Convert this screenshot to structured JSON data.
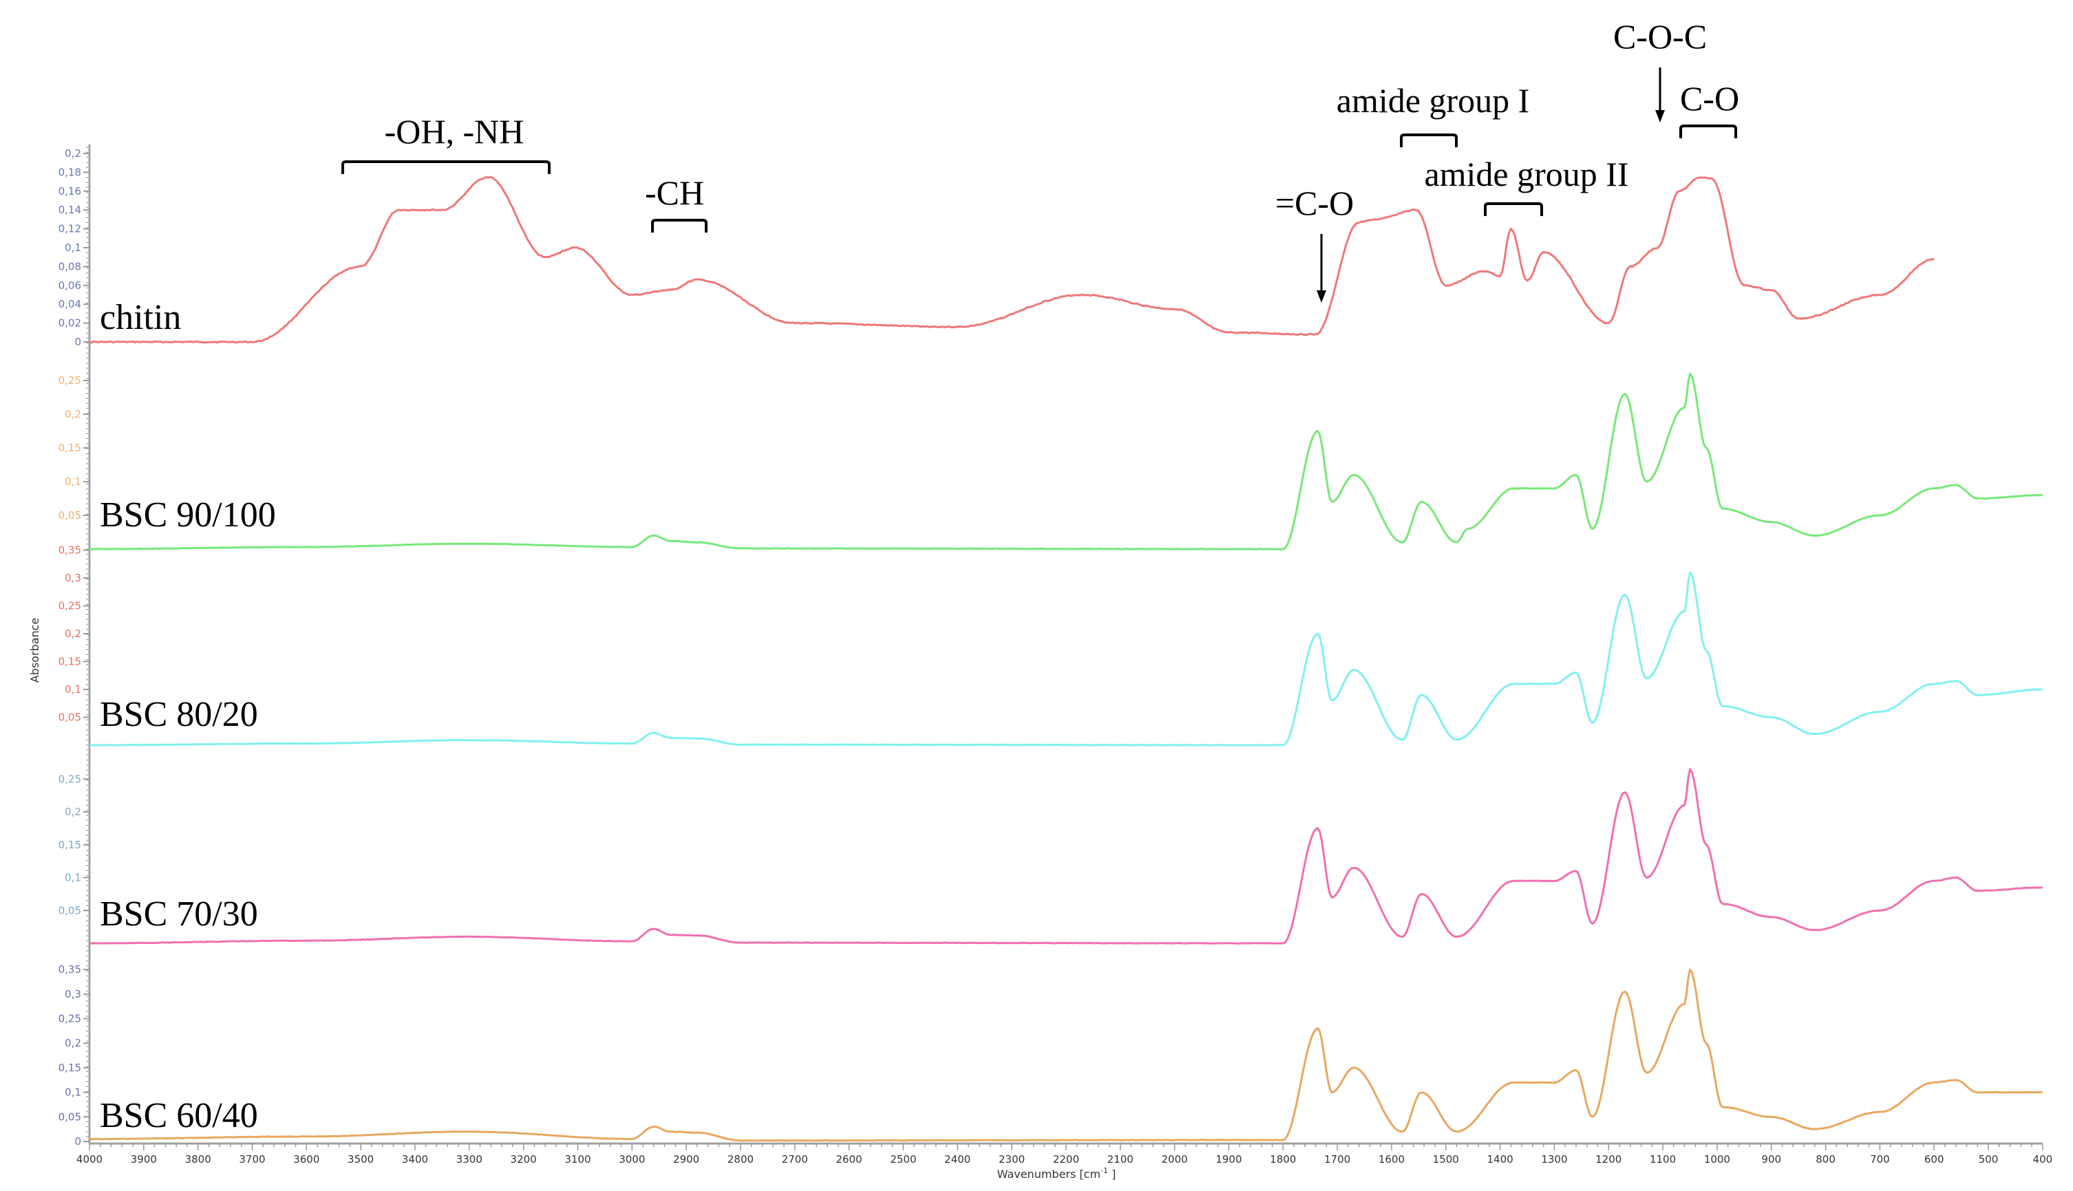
{
  "chart_data": {
    "type": "line",
    "title": "",
    "xlabel": "Wavenumbers [cm⁻¹ ]",
    "ylabel": "Absorbance",
    "x_range": [
      4000,
      400
    ],
    "x_reversed": true,
    "x_ticks": [
      4000,
      3900,
      3800,
      3700,
      3600,
      3500,
      3400,
      3300,
      3200,
      3100,
      3000,
      2900,
      2800,
      2700,
      2600,
      2500,
      2400,
      2300,
      2200,
      2100,
      2000,
      1900,
      1800,
      1700,
      1600,
      1500,
      1400,
      1300,
      1200,
      1100,
      1000,
      900,
      800,
      700,
      600,
      500,
      400
    ],
    "grid": false,
    "legend": "inline labels",
    "series": [
      {
        "name": "chitin",
        "color": "#f07878",
        "y_axis_color": "#6878b0",
        "y_ticks": [
          "0",
          "0,02",
          "0,04",
          "0,06",
          "0,08",
          "0,1",
          "0,12",
          "0,14",
          "0,16",
          "0,18",
          "0,2"
        ],
        "ylim": [
          0,
          0.2
        ],
        "x_end": 600,
        "key_points": [
          [
            4000,
            0.0
          ],
          [
            3700,
            0.0
          ],
          [
            3500,
            0.08
          ],
          [
            3430,
            0.14
          ],
          [
            3350,
            0.14
          ],
          [
            3265,
            0.175
          ],
          [
            3160,
            0.09
          ],
          [
            3105,
            0.1
          ],
          [
            3000,
            0.05
          ],
          [
            2930,
            0.055
          ],
          [
            2880,
            0.066
          ],
          [
            2700,
            0.02
          ],
          [
            2400,
            0.016
          ],
          [
            2170,
            0.05
          ],
          [
            2000,
            0.035
          ],
          [
            1900,
            0.01
          ],
          [
            1740,
            0.008
          ],
          [
            1660,
            0.127
          ],
          [
            1630,
            0.13
          ],
          [
            1555,
            0.14
          ],
          [
            1500,
            0.06
          ],
          [
            1430,
            0.075
          ],
          [
            1400,
            0.07
          ],
          [
            1380,
            0.12
          ],
          [
            1350,
            0.065
          ],
          [
            1320,
            0.095
          ],
          [
            1200,
            0.02
          ],
          [
            1160,
            0.08
          ],
          [
            1110,
            0.1
          ],
          [
            1070,
            0.16
          ],
          [
            1030,
            0.175
          ],
          [
            1010,
            0.173
          ],
          [
            950,
            0.06
          ],
          [
            900,
            0.055
          ],
          [
            850,
            0.025
          ],
          [
            700,
            0.05
          ],
          [
            600,
            0.088
          ]
        ]
      },
      {
        "name": "BSC 90/100",
        "color": "#78e878",
        "y_axis_color": "#f0b070",
        "y_ticks": [
          "0,05",
          "0,1",
          "0,15",
          "0,2",
          "0,25"
        ],
        "ylim": [
          0,
          0.28
        ],
        "key_points": [
          [
            4000,
            0.0
          ],
          [
            3600,
            0.003
          ],
          [
            3300,
            0.008
          ],
          [
            3000,
            0.003
          ],
          [
            2960,
            0.02
          ],
          [
            2930,
            0.012
          ],
          [
            2880,
            0.01
          ],
          [
            2800,
            0.001
          ],
          [
            1800,
            0.0
          ],
          [
            1736,
            0.175
          ],
          [
            1710,
            0.07
          ],
          [
            1670,
            0.11
          ],
          [
            1580,
            0.01
          ],
          [
            1545,
            0.07
          ],
          [
            1480,
            0.01
          ],
          [
            1460,
            0.03
          ],
          [
            1375,
            0.09
          ],
          [
            1300,
            0.09
          ],
          [
            1260,
            0.11
          ],
          [
            1230,
            0.03
          ],
          [
            1170,
            0.23
          ],
          [
            1130,
            0.1
          ],
          [
            1060,
            0.21
          ],
          [
            1050,
            0.26
          ],
          [
            1020,
            0.15
          ],
          [
            990,
            0.06
          ],
          [
            900,
            0.04
          ],
          [
            820,
            0.02
          ],
          [
            700,
            0.05
          ],
          [
            600,
            0.09
          ],
          [
            560,
            0.095
          ],
          [
            520,
            0.075
          ],
          [
            400,
            0.08
          ]
        ]
      },
      {
        "name": "BSC 80/20",
        "color": "#80f0f0",
        "y_axis_color": "#e87060",
        "y_ticks": [
          "0,05",
          "0,1",
          "0,15",
          "0,2",
          "0,25",
          "0,3",
          "0,35"
        ],
        "ylim": [
          0,
          0.36
        ],
        "key_points": [
          [
            4000,
            0.0
          ],
          [
            3600,
            0.003
          ],
          [
            3300,
            0.009
          ],
          [
            3000,
            0.003
          ],
          [
            2960,
            0.022
          ],
          [
            2930,
            0.013
          ],
          [
            2880,
            0.012
          ],
          [
            2800,
            0.001
          ],
          [
            1800,
            0.0
          ],
          [
            1736,
            0.2
          ],
          [
            1710,
            0.08
          ],
          [
            1670,
            0.135
          ],
          [
            1580,
            0.01
          ],
          [
            1545,
            0.09
          ],
          [
            1480,
            0.01
          ],
          [
            1375,
            0.11
          ],
          [
            1300,
            0.11
          ],
          [
            1260,
            0.13
          ],
          [
            1230,
            0.04
          ],
          [
            1170,
            0.27
          ],
          [
            1130,
            0.12
          ],
          [
            1060,
            0.24
          ],
          [
            1050,
            0.31
          ],
          [
            1020,
            0.17
          ],
          [
            990,
            0.07
          ],
          [
            900,
            0.05
          ],
          [
            820,
            0.02
          ],
          [
            700,
            0.06
          ],
          [
            600,
            0.11
          ],
          [
            560,
            0.115
          ],
          [
            520,
            0.09
          ],
          [
            400,
            0.1
          ]
        ]
      },
      {
        "name": "BSC 70/30",
        "color": "#f070b0",
        "y_axis_color": "#80a8c0",
        "y_ticks": [
          "0,05",
          "0,1",
          "0,15",
          "0,2",
          "0,25"
        ],
        "ylim": [
          0,
          0.28
        ],
        "key_points": [
          [
            4000,
            0.0
          ],
          [
            3600,
            0.004
          ],
          [
            3300,
            0.01
          ],
          [
            3000,
            0.003
          ],
          [
            2960,
            0.022
          ],
          [
            2930,
            0.013
          ],
          [
            2880,
            0.012
          ],
          [
            2800,
            0.001
          ],
          [
            1800,
            0.0
          ],
          [
            1736,
            0.175
          ],
          [
            1710,
            0.07
          ],
          [
            1670,
            0.115
          ],
          [
            1580,
            0.01
          ],
          [
            1545,
            0.075
          ],
          [
            1480,
            0.01
          ],
          [
            1375,
            0.095
          ],
          [
            1300,
            0.095
          ],
          [
            1260,
            0.11
          ],
          [
            1230,
            0.03
          ],
          [
            1170,
            0.23
          ],
          [
            1130,
            0.1
          ],
          [
            1060,
            0.21
          ],
          [
            1050,
            0.265
          ],
          [
            1020,
            0.15
          ],
          [
            990,
            0.06
          ],
          [
            900,
            0.04
          ],
          [
            820,
            0.02
          ],
          [
            700,
            0.05
          ],
          [
            600,
            0.095
          ],
          [
            560,
            0.1
          ],
          [
            520,
            0.08
          ],
          [
            400,
            0.085
          ]
        ]
      },
      {
        "name": "BSC 60/40",
        "color": "#e8a860",
        "y_axis_color": "#6870a8",
        "y_ticks": [
          "0",
          "0,05",
          "0,1",
          "0,15",
          "0,2",
          "0,25",
          "0,3",
          "0,35"
        ],
        "ylim": [
          0,
          0.37
        ],
        "key_points": [
          [
            4000,
            0.005
          ],
          [
            3600,
            0.01
          ],
          [
            3300,
            0.02
          ],
          [
            3000,
            0.005
          ],
          [
            2960,
            0.03
          ],
          [
            2930,
            0.02
          ],
          [
            2880,
            0.018
          ],
          [
            2800,
            0.002
          ],
          [
            1800,
            0.003
          ],
          [
            1736,
            0.23
          ],
          [
            1710,
            0.1
          ],
          [
            1670,
            0.15
          ],
          [
            1580,
            0.02
          ],
          [
            1545,
            0.1
          ],
          [
            1480,
            0.02
          ],
          [
            1375,
            0.12
          ],
          [
            1300,
            0.12
          ],
          [
            1260,
            0.145
          ],
          [
            1230,
            0.05
          ],
          [
            1170,
            0.305
          ],
          [
            1130,
            0.14
          ],
          [
            1060,
            0.28
          ],
          [
            1050,
            0.35
          ],
          [
            1020,
            0.2
          ],
          [
            990,
            0.07
          ],
          [
            900,
            0.05
          ],
          [
            820,
            0.025
          ],
          [
            700,
            0.06
          ],
          [
            600,
            0.12
          ],
          [
            560,
            0.125
          ],
          [
            520,
            0.1
          ],
          [
            400,
            0.1
          ]
        ]
      }
    ],
    "annotations": [
      {
        "text": "-OH, -NH",
        "type": "bracket",
        "range": [
          3540,
          3160
        ]
      },
      {
        "text": "-CH",
        "type": "bracket",
        "range": [
          2960,
          2860
        ]
      },
      {
        "text": "=C-O",
        "type": "arrow",
        "at": 1730
      },
      {
        "text": "amide group I",
        "type": "bracket",
        "range": [
          1600,
          1500
        ]
      },
      {
        "text": "amide group II",
        "type": "bracket",
        "range": [
          1430,
          1330
        ]
      },
      {
        "text": "C-O-C",
        "type": "arrow",
        "at": 1110
      },
      {
        "text": "C-O",
        "type": "bracket",
        "range": [
          1080,
          980
        ]
      }
    ]
  },
  "labels": {
    "xlabel_main": "Wavenumbers [cm",
    "xlabel_sup": "-1",
    "xlabel_end": " ]",
    "ylabel": "Absorbance"
  }
}
